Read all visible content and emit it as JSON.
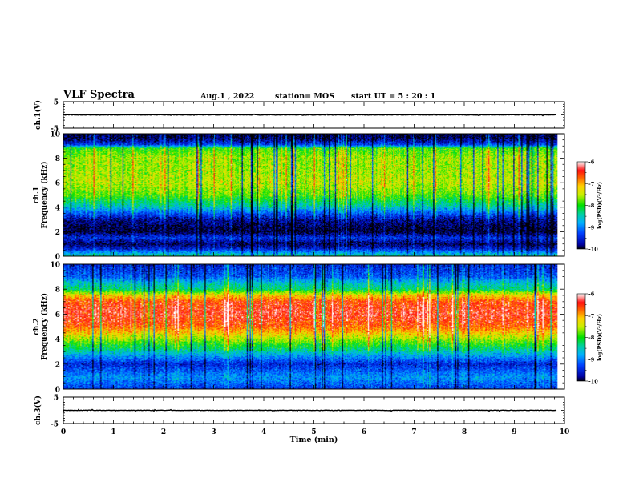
{
  "header": {
    "title": "VLF Spectra",
    "date": "Aug.1 , 2022",
    "station": "station= MOS",
    "start": "start UT = 5 : 20 : 1"
  },
  "chart_data": [
    {
      "type": "line",
      "name": "ch1-voltage",
      "ylabel": "ch.1(V)",
      "ylim": [
        -5,
        5
      ],
      "yticks": [
        "5",
        "-5"
      ],
      "xlim": [
        0,
        10
      ],
      "trace_level": 0
    },
    {
      "type": "heatmap",
      "name": "ch1-spectrogram",
      "ylabel": "ch.1 Frequency (kHz)",
      "ylim": [
        0,
        10
      ],
      "yticks": [
        "0",
        "2",
        "4",
        "6",
        "8",
        "10"
      ],
      "xlim": [
        0,
        10
      ],
      "data_end_min": 9.85,
      "colorbar": {
        "label": "log(PSD)(V²/Hz)",
        "range": [
          -10,
          -6
        ],
        "ticks": [
          "-6",
          "-7",
          "-8",
          "-9",
          "-10"
        ]
      },
      "profile": [
        {
          "f": 0.0,
          "v": -8.3
        },
        {
          "f": 0.3,
          "v": -8.9
        },
        {
          "f": 0.6,
          "v": -9.5
        },
        {
          "f": 1.0,
          "v": -9.9
        },
        {
          "f": 1.5,
          "v": -9.4
        },
        {
          "f": 2.0,
          "v": -10.0
        },
        {
          "f": 2.5,
          "v": -9.9
        },
        {
          "f": 3.0,
          "v": -9.7
        },
        {
          "f": 3.5,
          "v": -9.2
        },
        {
          "f": 4.0,
          "v": -8.6
        },
        {
          "f": 5.0,
          "v": -7.8
        },
        {
          "f": 6.0,
          "v": -7.5
        },
        {
          "f": 7.0,
          "v": -7.6
        },
        {
          "f": 8.0,
          "v": -7.6
        },
        {
          "f": 8.8,
          "v": -7.9
        },
        {
          "f": 9.1,
          "v": -9.3
        },
        {
          "f": 9.6,
          "v": -9.9
        },
        {
          "f": 10.0,
          "v": -9.9
        }
      ]
    },
    {
      "type": "heatmap",
      "name": "ch2-spectrogram",
      "ylabel": "ch.2 Frequency (kHz)",
      "ylim": [
        0,
        10
      ],
      "yticks": [
        "0",
        "2",
        "4",
        "6",
        "8",
        "10"
      ],
      "xlim": [
        0,
        10
      ],
      "data_end_min": 9.85,
      "colorbar": {
        "label": "log(PSD)(V²/Hz)",
        "range": [
          -10,
          -6
        ],
        "ticks": [
          "-6",
          "-7",
          "-8",
          "-9",
          "-10"
        ]
      },
      "profile": [
        {
          "f": 0.0,
          "v": -9.4
        },
        {
          "f": 0.5,
          "v": -9.1
        },
        {
          "f": 1.0,
          "v": -8.9
        },
        {
          "f": 1.5,
          "v": -9.2
        },
        {
          "f": 2.0,
          "v": -9.5
        },
        {
          "f": 2.5,
          "v": -9.0
        },
        {
          "f": 3.0,
          "v": -8.5
        },
        {
          "f": 4.0,
          "v": -7.6
        },
        {
          "f": 5.0,
          "v": -6.7
        },
        {
          "f": 6.0,
          "v": -6.4
        },
        {
          "f": 7.0,
          "v": -6.6
        },
        {
          "f": 7.5,
          "v": -7.2
        },
        {
          "f": 8.0,
          "v": -8.3
        },
        {
          "f": 8.5,
          "v": -8.6
        },
        {
          "f": 9.0,
          "v": -9.2
        },
        {
          "f": 10.0,
          "v": -9.5
        }
      ]
    },
    {
      "type": "line",
      "name": "ch3-voltage",
      "ylabel": "ch.3(V)",
      "ylim": [
        -5,
        5
      ],
      "yticks": [
        "5",
        "-5"
      ],
      "xlim": [
        0,
        10
      ],
      "trace_level": 0,
      "xlabel": "Time (min)",
      "xticks": [
        "0",
        "1",
        "2",
        "3",
        "4",
        "5",
        "6",
        "7",
        "8",
        "9",
        "10"
      ]
    }
  ]
}
